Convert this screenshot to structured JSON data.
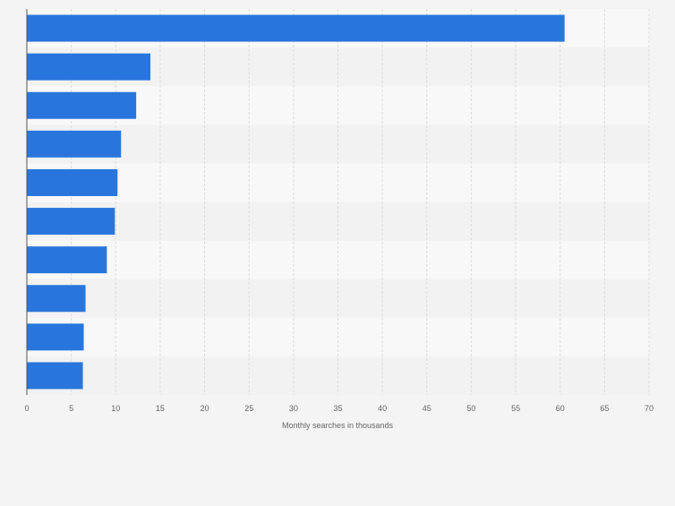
{
  "chart_data": {
    "type": "bar",
    "orientation": "horizontal",
    "title": "",
    "xlabel": "Monthly searches in thousands",
    "ylabel": "",
    "categories": [
      "",
      "",
      "",
      "",
      "",
      "",
      "",
      "",
      "",
      ""
    ],
    "values": [
      60.5,
      13.9,
      12.3,
      10.6,
      10.2,
      9.9,
      9.0,
      6.6,
      6.4,
      6.3
    ],
    "xlim": [
      0,
      70
    ],
    "xticks": [
      0,
      5,
      10,
      15,
      20,
      25,
      30,
      35,
      40,
      45,
      50,
      55,
      60,
      65,
      70
    ],
    "grid": true,
    "legend": "none",
    "colors": {
      "bar": "#2876dd",
      "band_light": "#f8f8f8",
      "band_dark": "#f2f2f2",
      "grid": "#dcdcdc",
      "axis": "#555555",
      "tick_text": "#666666"
    }
  }
}
